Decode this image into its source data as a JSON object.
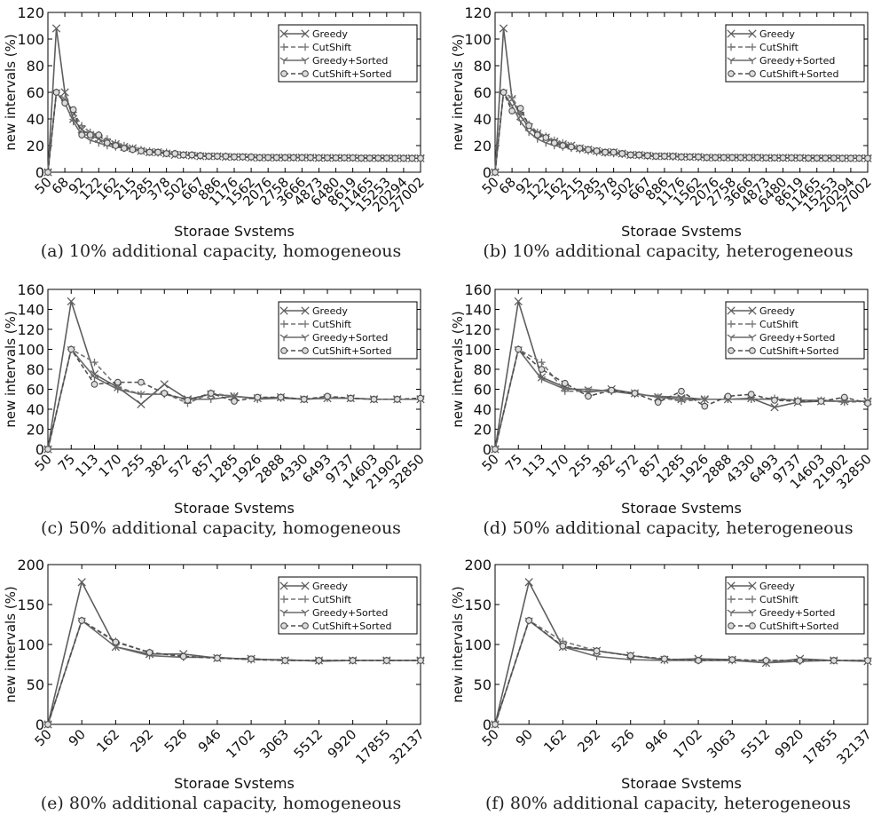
{
  "chart_data": [
    {
      "type": "line",
      "caption": "(a) 10% additional capacity, homogeneous",
      "xlabel": "Storage Systems",
      "ylabel": "new intervals (%)",
      "ylim": [
        0,
        120
      ],
      "yticks": [
        0,
        20,
        40,
        60,
        80,
        100,
        120
      ],
      "grid": false,
      "legend_position": "top-right",
      "tick_labels": [
        "50",
        "68",
        "92",
        "122",
        "162",
        "215",
        "285",
        "378",
        "502",
        "667",
        "886",
        "1176",
        "1562",
        "2076",
        "2758",
        "3666",
        "4873",
        "6480",
        "8619",
        "11465",
        "15253",
        "20294",
        "27002"
      ],
      "label_every": 2,
      "series": [
        {
          "name": "Greedy",
          "marker": "x",
          "dash": "solid",
          "values": [
            0,
            108,
            60,
            40,
            32,
            28,
            25,
            22,
            21,
            19,
            18,
            16,
            15,
            15,
            14,
            13,
            13,
            12.5,
            12,
            12,
            12,
            11.5,
            11.5,
            11.5,
            11,
            11,
            11,
            11,
            11,
            11,
            11,
            11,
            10.8,
            10.8,
            10.8,
            10.8,
            10.8,
            10.6,
            10.6,
            10.6,
            10.6,
            10.5,
            10.5,
            10.5,
            10.5
          ]
        },
        {
          "name": "CutShift",
          "marker": "+",
          "dash": "dashed",
          "values": [
            0,
            60,
            55,
            45,
            35,
            30,
            28,
            25,
            22,
            20,
            18,
            17,
            16,
            15,
            15,
            14,
            13,
            13,
            12.5,
            12,
            12,
            12,
            11.5,
            11.5,
            11.5,
            11,
            11,
            11,
            11,
            11,
            11,
            11,
            10.8,
            10.8,
            10.8,
            10.8,
            10.8,
            10.6,
            10.6,
            10.6,
            10.6,
            10.5,
            10.5,
            10.5,
            10.5
          ]
        },
        {
          "name": "Greedy+Sorted",
          "marker": "tri",
          "dash": "solid",
          "values": [
            0,
            60,
            52,
            38,
            28,
            24,
            22,
            20,
            19,
            18,
            17,
            16,
            15,
            14.5,
            14,
            13.5,
            13,
            12.5,
            12,
            12,
            12,
            11.5,
            11.5,
            11.5,
            11,
            11,
            11,
            11,
            11,
            11,
            11,
            10.8,
            10.8,
            10.8,
            10.8,
            10.8,
            10.7,
            10.6,
            10.6,
            10.6,
            10.6,
            10.5,
            10.5,
            10.5,
            10.5
          ]
        },
        {
          "name": "CutShift+Sorted",
          "marker": "o",
          "dash": "dashed",
          "values": [
            0,
            60,
            52,
            47,
            28,
            28,
            28,
            22,
            20,
            18,
            17,
            16,
            15,
            15,
            14,
            14,
            13,
            13,
            12.5,
            12,
            12,
            12,
            11.5,
            11.5,
            11.5,
            11,
            11,
            11,
            11,
            11,
            11,
            11,
            10.8,
            10.8,
            10.8,
            10.8,
            10.8,
            10.6,
            10.6,
            10.6,
            10.6,
            10.5,
            10.5,
            10.5,
            10.5
          ]
        }
      ]
    },
    {
      "type": "line",
      "caption": "(b) 10% additional capacity, heterogeneous",
      "xlabel": "Storage Systems",
      "ylabel": "new intervals (%)",
      "ylim": [
        0,
        120
      ],
      "yticks": [
        0,
        20,
        40,
        60,
        80,
        100,
        120
      ],
      "grid": false,
      "legend_position": "top-right",
      "tick_labels": [
        "50",
        "68",
        "92",
        "122",
        "162",
        "215",
        "285",
        "378",
        "502",
        "667",
        "886",
        "1176",
        "1562",
        "2076",
        "2758",
        "3666",
        "4873",
        "6480",
        "8619",
        "11465",
        "15253",
        "20294",
        "27002"
      ],
      "label_every": 2,
      "series": [
        {
          "name": "Greedy",
          "marker": "x",
          "dash": "solid",
          "values": [
            0,
            108,
            55,
            42,
            34,
            29,
            26,
            23,
            21,
            20,
            18,
            17,
            16,
            15,
            15,
            14,
            13,
            13,
            12.5,
            12,
            12,
            12,
            11.5,
            11.5,
            11.5,
            11,
            11,
            11,
            11,
            11,
            11,
            11,
            10.8,
            10.8,
            10.8,
            10.8,
            10.8,
            10.6,
            10.6,
            10.6,
            10.6,
            10.5,
            10.5,
            10.5,
            10.5
          ]
        },
        {
          "name": "CutShift",
          "marker": "+",
          "dash": "dashed",
          "values": [
            0,
            60,
            56,
            45,
            36,
            30,
            27,
            24,
            22,
            20,
            18,
            17,
            16,
            15,
            15,
            14,
            13,
            13,
            12.5,
            12,
            12,
            12,
            11.5,
            11.5,
            11.5,
            11,
            11,
            11,
            11,
            11,
            11,
            11,
            10.8,
            10.8,
            10.8,
            10.8,
            10.8,
            10.6,
            10.6,
            10.6,
            10.6,
            10.5,
            10.5,
            10.5,
            10.5
          ]
        },
        {
          "name": "Greedy+Sorted",
          "marker": "tri",
          "dash": "solid",
          "values": [
            0,
            60,
            50,
            38,
            30,
            25,
            22,
            20,
            19,
            18,
            17,
            16,
            15,
            14.5,
            14,
            13.5,
            13,
            12.5,
            12,
            12,
            12,
            11.5,
            11.5,
            11.5,
            11,
            11,
            11,
            11,
            11,
            11,
            11,
            10.8,
            10.8,
            10.8,
            10.8,
            10.8,
            10.7,
            10.6,
            10.6,
            10.6,
            10.6,
            10.5,
            10.5,
            10.5,
            10.5
          ]
        },
        {
          "name": "CutShift+Sorted",
          "marker": "o",
          "dash": "dashed",
          "values": [
            0,
            60,
            46,
            48,
            35,
            28,
            26,
            22,
            20,
            19,
            18,
            17,
            16,
            15,
            15,
            14,
            13,
            13,
            12.5,
            12,
            12,
            12,
            11.5,
            11.5,
            11.5,
            11,
            11,
            11,
            11,
            11,
            11,
            11,
            10.8,
            10.8,
            10.8,
            10.8,
            10.8,
            10.6,
            10.6,
            10.6,
            10.6,
            10.5,
            10.5,
            10.5,
            10.5
          ]
        }
      ]
    },
    {
      "type": "line",
      "caption": "(c) 50% additional capacity, homogeneous",
      "xlabel": "Storage Systems",
      "ylabel": "new intervals (%)",
      "ylim": [
        0,
        160
      ],
      "yticks": [
        0,
        20,
        40,
        60,
        80,
        100,
        120,
        140,
        160
      ],
      "grid": false,
      "legend_position": "top-right",
      "tick_labels": [
        "50",
        "75",
        "113",
        "170",
        "255",
        "382",
        "572",
        "857",
        "1285",
        "1926",
        "2888",
        "4330",
        "6493",
        "9737",
        "14603",
        "21902",
        "32850"
      ],
      "label_every": 1,
      "series": [
        {
          "name": "Greedy",
          "marker": "x",
          "dash": "solid",
          "values": [
            0,
            148,
            75,
            62,
            45,
            65,
            50,
            55,
            53,
            51,
            52,
            50,
            51,
            51,
            50,
            50,
            50
          ]
        },
        {
          "name": "CutShift",
          "marker": "+",
          "dash": "dashed",
          "values": [
            0,
            100,
            87,
            62,
            55,
            56,
            46,
            56,
            53,
            51,
            52,
            50,
            52,
            51,
            50,
            50,
            50
          ]
        },
        {
          "name": "Greedy+Sorted",
          "marker": "tri",
          "dash": "solid",
          "values": [
            0,
            100,
            72,
            60,
            55,
            55,
            50,
            50,
            53,
            50,
            51,
            50,
            51,
            51,
            50,
            50,
            50
          ]
        },
        {
          "name": "CutShift+Sorted",
          "marker": "o",
          "dash": "dashed",
          "values": [
            0,
            100,
            65,
            67,
            67,
            56,
            49,
            56,
            48,
            52,
            52,
            50,
            53,
            51,
            50,
            50,
            51
          ]
        }
      ]
    },
    {
      "type": "line",
      "caption": "(d) 50% additional capacity, heterogeneous",
      "xlabel": "Storage Systems",
      "ylabel": "new intervals (%)",
      "ylim": [
        0,
        160
      ],
      "yticks": [
        0,
        20,
        40,
        60,
        80,
        100,
        120,
        140,
        160
      ],
      "grid": false,
      "legend_position": "top-right",
      "tick_labels": [
        "50",
        "75",
        "113",
        "170",
        "255",
        "382",
        "572",
        "857",
        "1285",
        "1926",
        "2888",
        "4330",
        "6493",
        "9737",
        "14603",
        "21902",
        "32850"
      ],
      "label_every": 1,
      "series": [
        {
          "name": "Greedy",
          "marker": "x",
          "dash": "solid",
          "values": [
            0,
            148,
            72,
            62,
            57,
            60,
            56,
            52,
            50,
            50,
            50,
            51,
            42,
            47,
            48,
            48,
            48
          ]
        },
        {
          "name": "CutShift",
          "marker": "+",
          "dash": "dashed",
          "values": [
            0,
            100,
            87,
            58,
            58,
            58,
            56,
            52,
            48,
            50,
            50,
            50,
            51,
            49,
            49,
            47,
            48
          ]
        },
        {
          "name": "Greedy+Sorted",
          "marker": "tri",
          "dash": "solid",
          "values": [
            0,
            100,
            70,
            60,
            60,
            58,
            55,
            53,
            52,
            50,
            50,
            50,
            50,
            49,
            49,
            48,
            48
          ]
        },
        {
          "name": "CutShift+Sorted",
          "marker": "o",
          "dash": "dashed",
          "values": [
            0,
            100,
            80,
            66,
            53,
            59,
            56,
            47,
            58,
            43,
            53,
            55,
            49,
            48,
            48,
            52,
            46
          ]
        }
      ]
    },
    {
      "type": "line",
      "caption": "(e) 80% additional capacity, homogeneous",
      "xlabel": "Storage Systems",
      "ylabel": "new intervals (%)",
      "ylim": [
        0,
        200
      ],
      "yticks": [
        0,
        50,
        100,
        150,
        200
      ],
      "grid": false,
      "legend_position": "top-right",
      "tick_labels": [
        "50",
        "90",
        "162",
        "292",
        "526",
        "946",
        "1702",
        "3063",
        "5512",
        "9920",
        "17855",
        "32137"
      ],
      "label_every": 1,
      "series": [
        {
          "name": "Greedy",
          "marker": "x",
          "dash": "solid",
          "values": [
            0,
            178,
            97,
            88,
            88,
            83,
            82,
            80,
            80,
            80,
            80,
            80
          ]
        },
        {
          "name": "CutShift",
          "marker": "+",
          "dash": "dashed",
          "values": [
            0,
            130,
            104,
            90,
            85,
            83,
            81,
            80,
            80,
            80,
            80,
            80
          ]
        },
        {
          "name": "Greedy+Sorted",
          "marker": "tri",
          "dash": "solid",
          "values": [
            0,
            130,
            97,
            86,
            84,
            84,
            81,
            81,
            79,
            80,
            80,
            80
          ]
        },
        {
          "name": "CutShift+Sorted",
          "marker": "o",
          "dash": "dashed",
          "values": [
            0,
            130,
            103,
            90,
            85,
            83,
            82,
            80,
            80,
            80,
            80,
            80
          ]
        }
      ]
    },
    {
      "type": "line",
      "caption": "(f) 80% additional capacity, heterogeneous",
      "xlabel": "Storage Systems",
      "ylabel": "new intervals (%)",
      "ylim": [
        0,
        200
      ],
      "yticks": [
        0,
        50,
        100,
        150,
        200
      ],
      "grid": false,
      "legend_position": "top-right",
      "tick_labels": [
        "50",
        "90",
        "162",
        "292",
        "526",
        "946",
        "1702",
        "3063",
        "5512",
        "9920",
        "17855",
        "32137"
      ],
      "label_every": 1,
      "series": [
        {
          "name": "Greedy",
          "marker": "x",
          "dash": "solid",
          "values": [
            0,
            178,
            97,
            92,
            86,
            81,
            82,
            81,
            77,
            82,
            80,
            79
          ]
        },
        {
          "name": "CutShift",
          "marker": "+",
          "dash": "dashed",
          "values": [
            0,
            130,
            104,
            92,
            86,
            81,
            80,
            80,
            80,
            80,
            80,
            80
          ]
        },
        {
          "name": "Greedy+Sorted",
          "marker": "tri",
          "dash": "solid",
          "values": [
            0,
            130,
            97,
            85,
            81,
            80,
            80,
            80,
            77,
            79,
            80,
            80
          ]
        },
        {
          "name": "CutShift+Sorted",
          "marker": "o",
          "dash": "dashed",
          "values": [
            0,
            130,
            98,
            92,
            86,
            82,
            80,
            81,
            80,
            80,
            80,
            80
          ]
        }
      ]
    }
  ]
}
